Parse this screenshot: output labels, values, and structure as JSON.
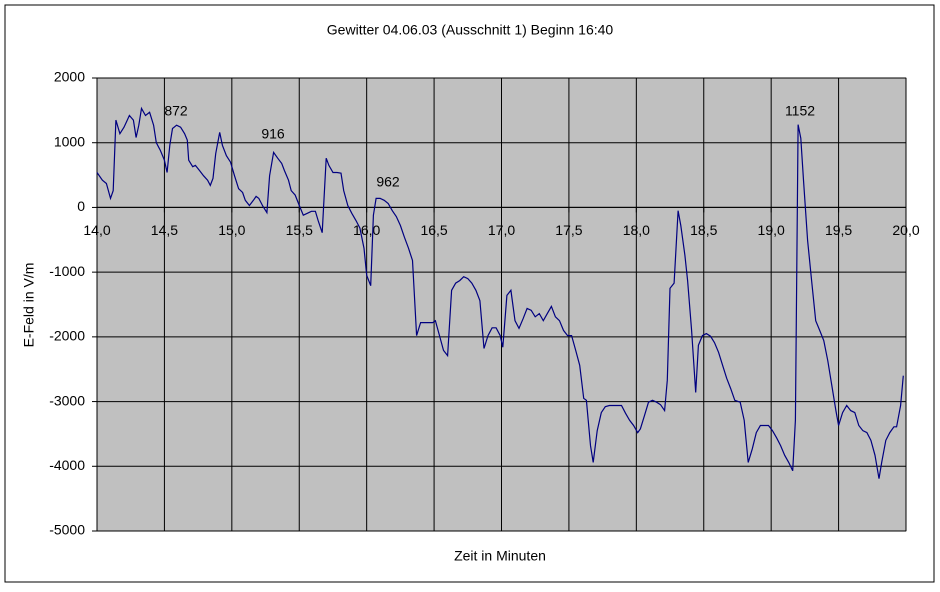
{
  "chart_data": {
    "type": "line",
    "title": "Gewitter 04.06.03 (Ausschnitt 1) Beginn 16:40",
    "x_label": "Zeit in Minuten",
    "y_label": "E-Feld in V/m",
    "xlim": [
      14,
      20
    ],
    "ylim": [
      -5000,
      2000
    ],
    "xticks": [
      {
        "value": 14,
        "label": "14,0"
      },
      {
        "value": 14.5,
        "label": "14,5"
      },
      {
        "value": 15,
        "label": "15,0"
      },
      {
        "value": 15.5,
        "label": "15,5"
      },
      {
        "value": 16,
        "label": "16,0"
      },
      {
        "value": 16.5,
        "label": "16,5"
      },
      {
        "value": 17,
        "label": "17,0"
      },
      {
        "value": 17.5,
        "label": "17,5"
      },
      {
        "value": 18,
        "label": "18,0"
      },
      {
        "value": 18.5,
        "label": "18,5"
      },
      {
        "value": 19,
        "label": "19,0"
      },
      {
        "value": 19.5,
        "label": "19,5"
      },
      {
        "value": 20,
        "label": "20,0"
      }
    ],
    "yticks": [
      2000,
      1000,
      0,
      -1000,
      -2000,
      -3000,
      -4000,
      -5000
    ],
    "grid": true,
    "plot_background": "#c0c0c0",
    "annotations": [
      {
        "text": "872"
      },
      {
        "text": "916"
      },
      {
        "text": "962"
      },
      {
        "text": "1152"
      }
    ],
    "series": [
      {
        "color": "#000080",
        "x": [
          14.0,
          14.04,
          14.07,
          14.1,
          14.12,
          14.14,
          14.17,
          14.2,
          14.24,
          14.27,
          14.29,
          14.31,
          14.33,
          14.36,
          14.39,
          14.42,
          14.44,
          14.47,
          14.5,
          14.52,
          14.54,
          14.56,
          14.59,
          14.62,
          14.65,
          14.67,
          14.68,
          14.71,
          14.73,
          14.76,
          14.79,
          14.82,
          14.84,
          14.86,
          14.88,
          14.91,
          14.93,
          14.96,
          14.99,
          15.02,
          15.05,
          15.08,
          15.1,
          15.13,
          15.16,
          15.18,
          15.2,
          15.23,
          15.26,
          15.28,
          15.31,
          15.34,
          15.37,
          15.39,
          15.42,
          15.44,
          15.47,
          15.5,
          15.53,
          15.56,
          15.59,
          15.62,
          15.64,
          15.67,
          15.7,
          15.72,
          15.75,
          15.78,
          15.81,
          15.83,
          15.86,
          15.89,
          15.92,
          15.95,
          15.98,
          16.0,
          16.03,
          16.05,
          16.07,
          16.1,
          16.13,
          16.16,
          16.19,
          16.22,
          16.25,
          16.28,
          16.31,
          16.34,
          16.37,
          16.4,
          16.43,
          16.49,
          16.51,
          16.54,
          16.57,
          16.6,
          16.63,
          16.66,
          16.69,
          16.72,
          16.75,
          16.78,
          16.81,
          16.84,
          16.87,
          16.9,
          16.93,
          16.96,
          16.99,
          17.01,
          17.04,
          17.07,
          17.1,
          17.13,
          17.16,
          17.19,
          17.22,
          17.25,
          17.28,
          17.31,
          17.34,
          17.37,
          17.4,
          17.43,
          17.46,
          17.49,
          17.52,
          17.55,
          17.58,
          17.61,
          17.63,
          17.66,
          17.68,
          17.71,
          17.74,
          17.77,
          17.8,
          17.89,
          17.92,
          17.95,
          17.98,
          18.01,
          18.03,
          18.06,
          18.09,
          18.12,
          18.15,
          18.18,
          18.21,
          18.23,
          18.25,
          18.28,
          18.31,
          18.33,
          18.36,
          18.38,
          18.41,
          18.44,
          18.46,
          18.49,
          18.52,
          18.55,
          18.58,
          18.61,
          18.64,
          18.67,
          18.7,
          18.73,
          18.77,
          18.8,
          18.83,
          18.86,
          18.89,
          18.92,
          18.98,
          19.01,
          19.04,
          19.07,
          19.1,
          19.13,
          19.16,
          19.18,
          19.2,
          19.22,
          19.24,
          19.27,
          19.3,
          19.33,
          19.36,
          19.39,
          19.42,
          19.45,
          19.48,
          19.5,
          19.53,
          19.56,
          19.59,
          19.62,
          19.65,
          19.68,
          19.71,
          19.74,
          19.77,
          19.8,
          19.82,
          19.85,
          19.88,
          19.91,
          19.93,
          19.96,
          19.98
        ],
        "values": [
          540,
          420,
          370,
          140,
          260,
          1350,
          1140,
          1240,
          1420,
          1350,
          1080,
          1270,
          1530,
          1420,
          1470,
          1270,
          1000,
          880,
          730,
          540,
          960,
          1220,
          1270,
          1240,
          1140,
          1040,
          730,
          630,
          650,
          570,
          490,
          420,
          340,
          450,
          830,
          1160,
          960,
          800,
          700,
          490,
          290,
          230,
          110,
          30,
          110,
          170,
          140,
          20,
          -80,
          490,
          850,
          760,
          680,
          570,
          420,
          260,
          190,
          30,
          -120,
          -90,
          -60,
          -60,
          -200,
          -390,
          760,
          650,
          540,
          540,
          530,
          260,
          30,
          -90,
          -200,
          -320,
          -630,
          -1050,
          -1210,
          -120,
          140,
          140,
          110,
          60,
          -50,
          -140,
          -280,
          -460,
          -630,
          -820,
          -1980,
          -1780,
          -1780,
          -1780,
          -1750,
          -1980,
          -2210,
          -2290,
          -1280,
          -1170,
          -1130,
          -1070,
          -1100,
          -1170,
          -1280,
          -1440,
          -2180,
          -1980,
          -1860,
          -1860,
          -1980,
          -2160,
          -1360,
          -1280,
          -1750,
          -1870,
          -1720,
          -1560,
          -1590,
          -1690,
          -1640,
          -1750,
          -1640,
          -1530,
          -1690,
          -1750,
          -1900,
          -1980,
          -1980,
          -2210,
          -2440,
          -2950,
          -2980,
          -3680,
          -3940,
          -3450,
          -3170,
          -3080,
          -3060,
          -3060,
          -3180,
          -3290,
          -3370,
          -3480,
          -3420,
          -3220,
          -3010,
          -2980,
          -3010,
          -3050,
          -3140,
          -2670,
          -1250,
          -1170,
          -50,
          -280,
          -740,
          -1130,
          -1900,
          -2860,
          -2130,
          -1980,
          -1950,
          -1990,
          -2090,
          -2240,
          -2440,
          -2640,
          -2800,
          -2980,
          -3010,
          -3290,
          -3940,
          -3730,
          -3480,
          -3370,
          -3370,
          -3450,
          -3560,
          -3680,
          -3830,
          -3940,
          -4070,
          -3290,
          1280,
          1070,
          420,
          -510,
          -1130,
          -1750,
          -1900,
          -2060,
          -2370,
          -2750,
          -3140,
          -3370,
          -3170,
          -3060,
          -3140,
          -3170,
          -3370,
          -3450,
          -3480,
          -3600,
          -3830,
          -4190,
          -3940,
          -3600,
          -3480,
          -3390,
          -3390,
          -3060,
          -2600
        ]
      }
    ]
  }
}
